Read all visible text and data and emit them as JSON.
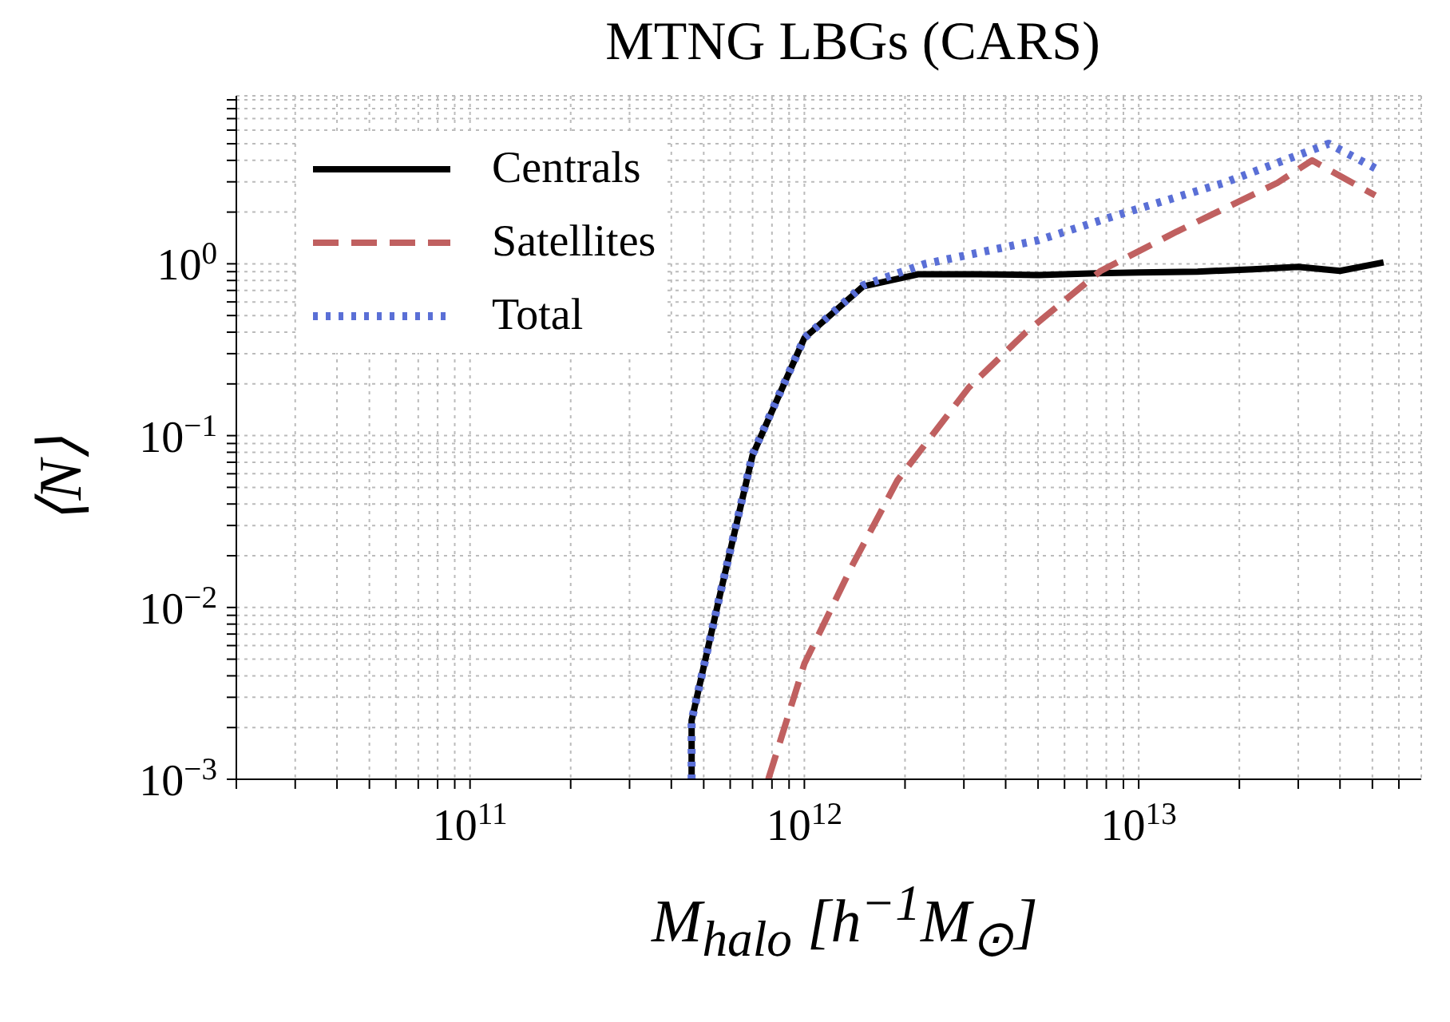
{
  "chart_data": {
    "type": "line",
    "title": "MTNG LBGs (CARS)",
    "xlabel": "M$_{halo}$ [h$^{−1}$M$_{⊙}$]",
    "ylabel": "⟨N⟩",
    "log": "xy",
    "grid": true,
    "legend": "top left",
    "xlim": [
      20000000000.0,
      70000000000000.0
    ],
    "ylim": [
      0.001,
      9.5
    ],
    "xticks": [
      {
        "value": 20000000000.0,
        "label": null
      },
      {
        "value": 30000000000.0,
        "label": null
      },
      {
        "value": 40000000000.0,
        "label": null
      },
      {
        "value": 50000000000.0,
        "label": null
      },
      {
        "value": 60000000000.0,
        "label": null
      },
      {
        "value": 70000000000.0,
        "label": null
      },
      {
        "value": 80000000000.0,
        "label": null
      },
      {
        "value": 90000000000.0,
        "label": null
      },
      {
        "value": 100000000000.0,
        "label": "10$^{11}$"
      },
      {
        "value": 200000000000.0,
        "label": null
      },
      {
        "value": 300000000000.0,
        "label": null
      },
      {
        "value": 400000000000.0,
        "label": null
      },
      {
        "value": 500000000000.0,
        "label": null
      },
      {
        "value": 600000000000.0,
        "label": null
      },
      {
        "value": 700000000000.0,
        "label": null
      },
      {
        "value": 800000000000.0,
        "label": null
      },
      {
        "value": 900000000000.0,
        "label": null
      },
      {
        "value": 1000000000000.0,
        "label": "10$^{12}$"
      },
      {
        "value": 2000000000000.0,
        "label": null
      },
      {
        "value": 3000000000000.0,
        "label": null
      },
      {
        "value": 4000000000000.0,
        "label": null
      },
      {
        "value": 5000000000000.0,
        "label": null
      },
      {
        "value": 6000000000000.0,
        "label": null
      },
      {
        "value": 7000000000000.0,
        "label": null
      },
      {
        "value": 8000000000000.0,
        "label": null
      },
      {
        "value": 9000000000000.0,
        "label": null
      },
      {
        "value": 10000000000000.0,
        "label": "10$^{13}$"
      },
      {
        "value": 20000000000000.0,
        "label": null
      },
      {
        "value": 30000000000000.0,
        "label": null
      },
      {
        "value": 40000000000000.0,
        "label": null
      },
      {
        "value": 50000000000000.0,
        "label": null
      },
      {
        "value": 60000000000000.0,
        "label": null
      }
    ],
    "yticks": [
      {
        "value": 0.001,
        "label": "10$^{−3}$"
      },
      {
        "value": 0.002,
        "label": null
      },
      {
        "value": 0.003,
        "label": null
      },
      {
        "value": 0.004,
        "label": null
      },
      {
        "value": 0.005,
        "label": null
      },
      {
        "value": 0.006,
        "label": null
      },
      {
        "value": 0.007,
        "label": null
      },
      {
        "value": 0.008,
        "label": null
      },
      {
        "value": 0.009,
        "label": null
      },
      {
        "value": 0.01,
        "label": "10$^{−2}$"
      },
      {
        "value": 0.02,
        "label": null
      },
      {
        "value": 0.03,
        "label": null
      },
      {
        "value": 0.04,
        "label": null
      },
      {
        "value": 0.05,
        "label": null
      },
      {
        "value": 0.06,
        "label": null
      },
      {
        "value": 0.07,
        "label": null
      },
      {
        "value": 0.08,
        "label": null
      },
      {
        "value": 0.09,
        "label": null
      },
      {
        "value": 0.1,
        "label": "10$^{−1}$"
      },
      {
        "value": 0.2,
        "label": null
      },
      {
        "value": 0.3,
        "label": null
      },
      {
        "value": 0.4,
        "label": null
      },
      {
        "value": 0.5,
        "label": null
      },
      {
        "value": 0.6,
        "label": null
      },
      {
        "value": 0.7,
        "label": null
      },
      {
        "value": 0.8,
        "label": null
      },
      {
        "value": 0.9,
        "label": null
      },
      {
        "value": 1,
        "label": "10$^{0}$"
      },
      {
        "value": 2,
        "label": null
      },
      {
        "value": 3,
        "label": null
      },
      {
        "value": 4,
        "label": null
      },
      {
        "value": 5,
        "label": null
      },
      {
        "value": 6,
        "label": null
      },
      {
        "value": 7,
        "label": null
      },
      {
        "value": 8,
        "label": null
      },
      {
        "value": 9,
        "label": null
      }
    ],
    "series": [
      {
        "name": "Centrals",
        "color": "#000000",
        "line_style": "solid",
        "x": [
          460000000000.0,
          460000000000.0,
          560000000000.0,
          700000000000.0,
          1000000000000.0,
          1500000000000.0,
          2200000000000.0,
          3300000000000.0,
          5000000000000.0,
          7500000000000.0,
          10000000000000.0,
          15000000000000.0,
          22000000000000.0,
          30000000000000.0,
          40000000000000.0,
          54000000000000.0
        ],
        "values": [
          0.001,
          0.0022,
          0.012,
          0.077,
          0.37,
          0.74,
          0.87,
          0.87,
          0.86,
          0.88,
          0.89,
          0.9,
          0.93,
          0.96,
          0.91,
          1.02
        ]
      },
      {
        "name": "Satellites",
        "color": "#c06060",
        "line_style": "dashed",
        "x": [
          780000000000.0,
          1000000000000.0,
          1400000000000.0,
          1900000000000.0,
          3100000000000.0,
          4600000000000.0,
          7700000000000.0,
          13000000000000.0,
          26000000000000.0,
          33000000000000.0,
          51000000000000.0
        ],
        "values": [
          0.001,
          0.0047,
          0.018,
          0.055,
          0.19,
          0.4,
          0.91,
          1.54,
          2.96,
          4.0,
          2.5
        ]
      },
      {
        "name": "Total",
        "color": "#5a6fd6",
        "line_style": "dotted",
        "x": [
          460000000000.0,
          460000000000.0,
          560000000000.0,
          700000000000.0,
          1000000000000.0,
          1500000000000.0,
          2300000000000.0,
          5000000000000.0,
          8700000000000.0,
          18000000000000.0,
          37000000000000.0,
          51000000000000.0
        ],
        "values": [
          0.001,
          0.0022,
          0.012,
          0.078,
          0.37,
          0.75,
          1.0,
          1.37,
          1.93,
          2.96,
          5.0,
          3.6
        ]
      }
    ]
  }
}
